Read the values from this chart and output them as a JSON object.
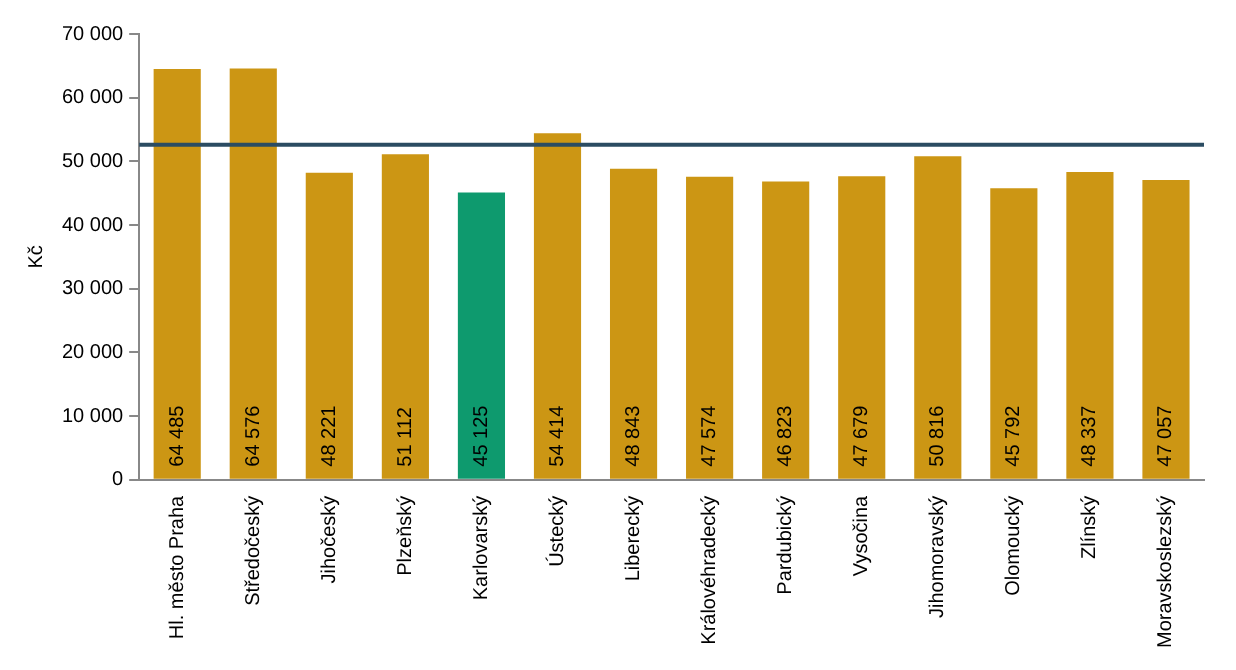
{
  "chart_data": {
    "type": "bar",
    "ylabel": "Kč",
    "categories": [
      "Hl. město Praha",
      "Středočeský",
      "Jihočeský",
      "Plzeňský",
      "Karlovarský",
      "Ústecký",
      "Liberecký",
      "Královéhradecký",
      "Pardubický",
      "Vysočina",
      "Jihomoravský",
      "Olomoucký",
      "Zlínský",
      "Moravskoslezský"
    ],
    "values": [
      64485,
      64576,
      48221,
      51112,
      45125,
      54414,
      48843,
      47574,
      46823,
      47679,
      50816,
      45792,
      48337,
      47057
    ],
    "colors": [
      "#cc9614",
      "#cc9614",
      "#cc9614",
      "#cc9614",
      "#0e9a6e",
      "#cc9614",
      "#cc9614",
      "#cc9614",
      "#cc9614",
      "#cc9614",
      "#cc9614",
      "#cc9614",
      "#cc9614",
      "#cc9614"
    ],
    "value_labels": [
      "64 485",
      "64 576",
      "48 221",
      "51 112",
      "45 125",
      "54 414",
      "48 843",
      "47 574",
      "46 823",
      "47 679",
      "50 816",
      "45 792",
      "48 337",
      "47 057"
    ],
    "ylim": [
      0,
      70000
    ],
    "yticks": [
      0,
      {
        "value": 10000,
        "label": "10 000"
      },
      {
        "value": 20000,
        "label": "20 000"
      },
      {
        "value": 30000,
        "label": "30 000"
      },
      {
        "value": 40000,
        "label": "40 000"
      },
      {
        "value": 50000,
        "label": "50 000"
      },
      {
        "value": 60000,
        "label": "60 000"
      },
      {
        "value": 70000,
        "label": "70 000"
      }
    ],
    "ref_lines": [
      {
        "axis": "y",
        "value": 52600,
        "color": "#2b4c62"
      }
    ],
    "grid": false,
    "legend": false
  }
}
